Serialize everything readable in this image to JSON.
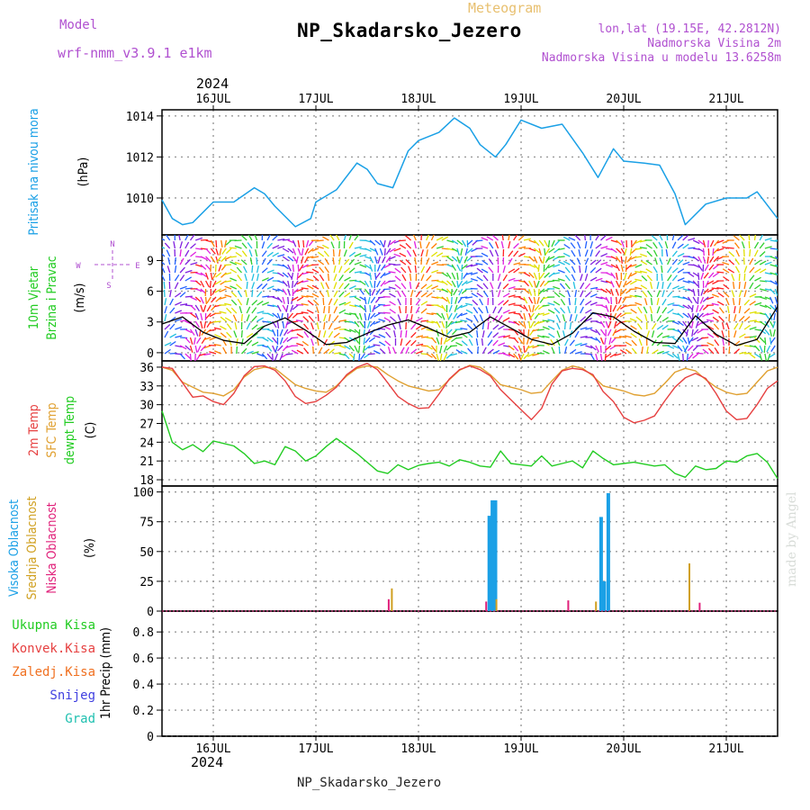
{
  "header": {
    "model_label": "Model",
    "model_name": "wrf-nmm_v3.9.1 e1km",
    "meteogram_label": "Meteogram",
    "station": "NP_Skadarsko_Jezero",
    "lonlat": "lon,lat (19.15E, 42.2812N)",
    "elevation": "Nadmorska Visina 2m",
    "model_elevation": "Nadmorska Visina u modelu 13.6258m",
    "year": "2024",
    "footer_station": "NP_Skadarsko_Jezero",
    "credit": "made by Angel"
  },
  "colors": {
    "pressure": "#1aa0e6",
    "temp2m": "#e64040",
    "sfc_temp": "#e0a030",
    "dewpoint": "#22cc22",
    "high_cloud": "#1aa0e6",
    "mid_cloud": "#d0a020",
    "low_cloud": "#e0207a",
    "wind_speed": "#000000",
    "gust": "#e64040"
  },
  "chart_data": [
    {
      "id": "pressure",
      "type": "line",
      "ylabel": [
        "Pritisak na nivou mora",
        "(hPa)"
      ],
      "ylim": [
        1008.2,
        1014.3
      ],
      "yticks": [
        1010,
        1012,
        1014
      ],
      "x_days": [
        15.5,
        15.6,
        15.7,
        15.8,
        16.0,
        16.2,
        16.4,
        16.5,
        16.6,
        16.8,
        16.95,
        17.0,
        17.2,
        17.4,
        17.5,
        17.6,
        17.75,
        17.9,
        18.0,
        18.2,
        18.35,
        18.5,
        18.6,
        18.75,
        18.85,
        19.0,
        19.2,
        19.4,
        19.5,
        19.6,
        19.75,
        19.9,
        20.0,
        20.2,
        20.35,
        20.5,
        20.6,
        20.8,
        21.0,
        21.2,
        21.3,
        21.5
      ],
      "series": [
        {
          "values": [
            1009.9,
            1009.0,
            1008.7,
            1008.8,
            1009.8,
            1009.8,
            1010.5,
            1010.2,
            1009.6,
            1008.6,
            1009.0,
            1009.8,
            1010.4,
            1011.7,
            1011.4,
            1010.7,
            1010.5,
            1012.3,
            1012.8,
            1013.2,
            1013.9,
            1013.4,
            1012.6,
            1012.0,
            1012.6,
            1013.8,
            1013.4,
            1013.6,
            1012.9,
            1012.2,
            1011.0,
            1012.4,
            1011.8,
            1011.7,
            1011.6,
            1010.2,
            1008.7,
            1009.7,
            1010.0,
            1010.0,
            1010.3,
            1009.0
          ]
        }
      ]
    },
    {
      "id": "wind",
      "type": "line",
      "ylabel": [
        "10m Vjetar",
        "Brzina i Pravac",
        "(m/s)"
      ],
      "compass": [
        "N",
        "S",
        "E",
        "W"
      ],
      "ylim": [
        -0.8,
        11.5
      ],
      "yticks": [
        0,
        3,
        6,
        9
      ],
      "x_days": [
        15.5,
        15.7,
        15.9,
        16.1,
        16.3,
        16.5,
        16.7,
        16.9,
        17.1,
        17.3,
        17.5,
        17.7,
        17.9,
        18.1,
        18.3,
        18.5,
        18.7,
        18.9,
        19.1,
        19.3,
        19.5,
        19.7,
        19.9,
        20.1,
        20.3,
        20.5,
        20.7,
        20.9,
        21.1,
        21.3,
        21.5
      ],
      "series": [
        {
          "name": "speed",
          "values": [
            2.8,
            3.5,
            2.0,
            1.2,
            0.9,
            2.6,
            3.4,
            2.2,
            0.8,
            1.0,
            1.9,
            2.7,
            3.2,
            2.4,
            1.5,
            2.0,
            3.5,
            2.4,
            1.3,
            0.8,
            1.9,
            3.9,
            3.5,
            2.1,
            1.0,
            0.9,
            3.6,
            1.8,
            0.7,
            1.3,
            4.5
          ]
        }
      ]
    },
    {
      "id": "temperature",
      "type": "line",
      "ylabel": [
        "2m Temp",
        "SFC Temp",
        "dewpt Temp",
        "(C)"
      ],
      "ylim": [
        17.0,
        37.0
      ],
      "yticks": [
        18,
        21,
        24,
        27,
        30,
        33,
        36
      ],
      "x_days": [
        15.5,
        15.6,
        15.7,
        15.8,
        15.9,
        16.0,
        16.1,
        16.2,
        16.3,
        16.4,
        16.5,
        16.6,
        16.7,
        16.8,
        16.9,
        17.0,
        17.1,
        17.2,
        17.3,
        17.4,
        17.5,
        17.6,
        17.7,
        17.8,
        17.9,
        18.0,
        18.1,
        18.2,
        18.3,
        18.4,
        18.5,
        18.6,
        18.7,
        18.8,
        18.9,
        19.0,
        19.1,
        19.2,
        19.3,
        19.4,
        19.5,
        19.6,
        19.7,
        19.8,
        19.9,
        20.0,
        20.1,
        20.2,
        20.3,
        20.4,
        20.5,
        20.6,
        20.7,
        20.8,
        20.9,
        21.0,
        21.1,
        21.2,
        21.3,
        21.4,
        21.5
      ],
      "series": [
        {
          "name": "2m Temp",
          "values": [
            36.0,
            35.8,
            33.5,
            31.2,
            31.4,
            30.5,
            30.0,
            31.8,
            34.6,
            36.1,
            36.2,
            35.5,
            33.8,
            31.3,
            30.2,
            30.5,
            31.5,
            32.8,
            34.8,
            36.0,
            36.6,
            35.6,
            33.5,
            31.3,
            30.2,
            29.4,
            29.5,
            31.7,
            34.1,
            35.6,
            36.2,
            35.6,
            34.6,
            32.4,
            30.8,
            29.2,
            27.6,
            29.4,
            33.3,
            35.4,
            35.8,
            35.6,
            34.8,
            32.1,
            30.5,
            28.0,
            27.1,
            27.5,
            28.2,
            30.6,
            32.8,
            34.3,
            35.0,
            34.2,
            31.8,
            29.0,
            27.6,
            27.8,
            30.0,
            32.6,
            33.8
          ]
        },
        {
          "name": "SFC Temp",
          "values": [
            36.0,
            35.5,
            33.6,
            32.8,
            32.0,
            31.8,
            31.4,
            32.4,
            34.4,
            35.6,
            36.0,
            35.8,
            34.5,
            33.2,
            32.6,
            32.2,
            32.0,
            33.0,
            34.6,
            35.8,
            36.2,
            36.0,
            34.8,
            33.8,
            33.0,
            32.6,
            32.2,
            32.4,
            34.0,
            35.5,
            36.3,
            36.0,
            34.8,
            33.2,
            32.8,
            32.4,
            31.8,
            32.0,
            33.8,
            35.5,
            36.2,
            35.8,
            34.6,
            33.0,
            32.6,
            32.2,
            31.6,
            31.4,
            31.8,
            33.4,
            35.2,
            35.8,
            35.4,
            34.0,
            32.8,
            32.0,
            31.6,
            31.8,
            33.6,
            35.4,
            36.0
          ]
        },
        {
          "name": "dewpt Temp",
          "values": [
            29.0,
            24.0,
            22.8,
            23.6,
            22.5,
            24.2,
            23.8,
            23.4,
            22.2,
            20.6,
            21.0,
            20.4,
            23.3,
            22.6,
            21.0,
            21.8,
            23.3,
            24.6,
            23.4,
            22.2,
            20.8,
            19.4,
            19.0,
            20.4,
            19.6,
            20.3,
            20.6,
            20.8,
            20.2,
            21.2,
            20.8,
            20.2,
            20.0,
            22.6,
            20.6,
            20.4,
            20.2,
            21.8,
            20.2,
            20.6,
            21.0,
            19.9,
            22.6,
            21.4,
            20.4,
            20.6,
            20.8,
            20.5,
            20.2,
            20.4,
            19.0,
            18.4,
            20.2,
            19.6,
            19.8,
            21.0,
            20.8,
            21.8,
            22.2,
            20.8,
            18.2
          ]
        }
      ]
    },
    {
      "id": "clouds",
      "type": "bar",
      "ylabel": [
        "Visoka Oblacnost",
        "Srednja Oblacnost",
        "Niska Oblacnost",
        "(%)"
      ],
      "ylim": [
        0,
        105
      ],
      "yticks": [
        0,
        25,
        50,
        75,
        100
      ],
      "series": [
        {
          "name": "Visoka Oblacnost",
          "x_days": [
            18.69,
            18.72,
            18.75,
            19.78,
            19.81,
            19.85
          ],
          "values": [
            80,
            93,
            93,
            79,
            25,
            99
          ]
        },
        {
          "name": "Srednja Oblacnost",
          "x_days": [
            17.74,
            18.76,
            19.73,
            20.64
          ],
          "values": [
            19,
            10,
            8,
            40
          ]
        },
        {
          "name": "Niska Oblacnost",
          "x_days": [
            17.71,
            18.66,
            19.46,
            20.74
          ],
          "values": [
            10,
            8,
            9,
            7
          ]
        }
      ]
    },
    {
      "id": "precip",
      "type": "bar",
      "ylabel": [
        "1hr Precip (mm)"
      ],
      "legend": [
        "Ukupna Kisa",
        "Konvek.Kisa",
        "Zaledj.Kisa",
        "Snijeg",
        "Grad"
      ],
      "ylim": [
        0,
        0.96
      ],
      "yticks": [
        0,
        0.2,
        0.4,
        0.6,
        0.8
      ],
      "series": []
    }
  ],
  "xaxis": {
    "xlim": [
      15.5,
      21.5
    ],
    "days": [
      16,
      17,
      18,
      19,
      20,
      21
    ],
    "labels": [
      "16JUL",
      "17JUL",
      "18JUL",
      "19JUL",
      "20JUL",
      "21JUL"
    ]
  }
}
